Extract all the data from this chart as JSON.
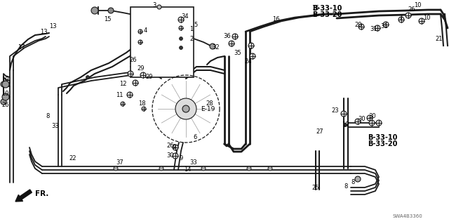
{
  "bg_color": "#ffffff",
  "fig_width": 6.4,
  "fig_height": 3.19,
  "dpi": 100,
  "lc": "#1a1a1a",
  "label_E19": "E-19",
  "label_FR": "FR.",
  "label_SWA": "SWA4B3360",
  "b3310_top": "B-33-10",
  "b3320_top": "B-33-20",
  "b3310_mid": "B-33-10",
  "b3320_mid": "B-33-20"
}
